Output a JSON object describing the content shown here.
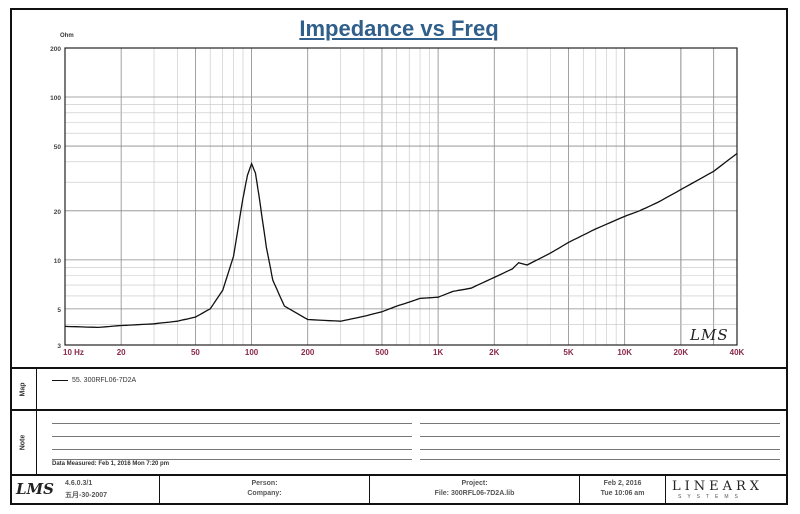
{
  "title": "Impedance vs Freq",
  "unit_label": "Ohm",
  "watermark": "LMS",
  "chart_data": {
    "type": "line",
    "title": "Impedance vs Freq",
    "xlabel": "",
    "ylabel": "Ohm",
    "x_scale": "log",
    "y_scale": "log",
    "xlim": [
      10,
      40000
    ],
    "ylim": [
      3,
      200
    ],
    "grid": true,
    "x_tick_labels": [
      "10 Hz",
      "20",
      "50",
      "100",
      "200",
      "500",
      "1K",
      "2K",
      "5K",
      "10K",
      "20K",
      "40K"
    ],
    "x_tick_values": [
      10,
      20,
      50,
      100,
      200,
      500,
      1000,
      2000,
      5000,
      10000,
      20000,
      40000
    ],
    "y_tick_labels": [
      "3",
      "5",
      "10",
      "20",
      "50",
      "100",
      "200"
    ],
    "y_tick_values": [
      3,
      5,
      10,
      20,
      50,
      100,
      200
    ],
    "series": [
      {
        "name": "55. 300RFL06-7D2A",
        "color": "#111111",
        "x": [
          10,
          15,
          20,
          30,
          40,
          50,
          60,
          70,
          80,
          90,
          95,
          100,
          105,
          110,
          120,
          130,
          150,
          200,
          300,
          400,
          500,
          600,
          700,
          800,
          1000,
          1200,
          1500,
          2000,
          2500,
          2700,
          3000,
          4000,
          5000,
          7000,
          10000,
          12000,
          15000,
          20000,
          30000,
          40000
        ],
        "y": [
          3.9,
          3.85,
          3.95,
          4.05,
          4.2,
          4.45,
          5.0,
          6.5,
          10.5,
          24,
          33,
          39,
          34,
          24,
          12,
          7.5,
          5.2,
          4.3,
          4.2,
          4.5,
          4.8,
          5.2,
          5.5,
          5.8,
          5.9,
          6.4,
          6.7,
          7.8,
          8.8,
          9.6,
          9.3,
          11.0,
          12.8,
          15.5,
          18.5,
          20.0,
          22.5,
          27.0,
          35.0,
          45.0
        ]
      }
    ]
  },
  "legend": {
    "side_label": "Map",
    "entry": "55. 300RFL06-7D2A"
  },
  "notes": {
    "side_label": "Note",
    "date_measured": "Data Measured: Feb 1, 2016 Mon 7:20 pm"
  },
  "footer": {
    "logo": "LMS",
    "version": "4.6.0.3/1",
    "version_date": "五月-30-2007",
    "person_label": "Person:",
    "company_label": "Company:",
    "project_label": "Project:",
    "file_label": "File: 300RFL06-7D2A.lib",
    "date": "Feb 2, 2016",
    "time": "Tue 10:06 am",
    "brand": "LINEARX",
    "brand_sub": "SYSTEMS"
  }
}
